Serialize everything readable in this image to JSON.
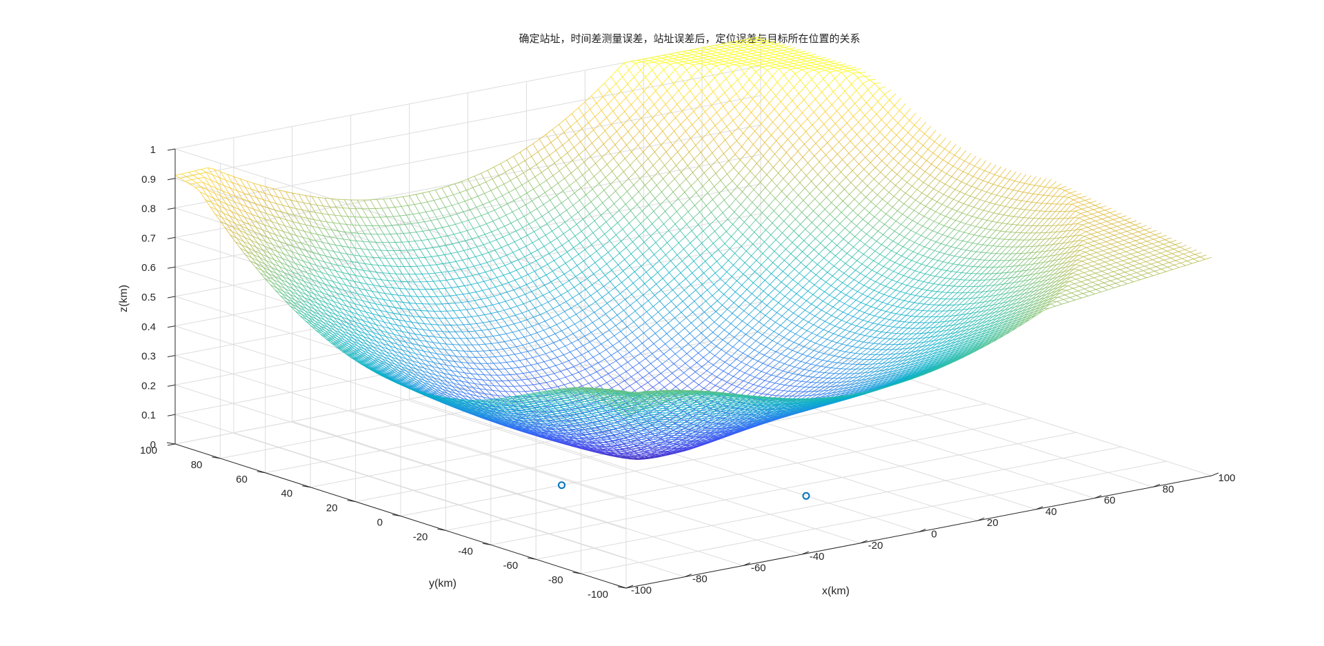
{
  "chart_data": {
    "type": "surface",
    "title": "确定站址，时间差测量误差，站址误差后，定位误差与目标所在位置的关系",
    "xlabel": "x(km)",
    "ylabel": "y(km)",
    "zlabel": "z(km)",
    "xlim": [
      -100,
      100
    ],
    "ylim": [
      -100,
      100
    ],
    "zlim": [
      0,
      1
    ],
    "x_ticks": [
      "-100",
      "-80",
      "-60",
      "-40",
      "-20",
      "0",
      "20",
      "40",
      "60",
      "80",
      "100"
    ],
    "y_ticks": [
      "-100",
      "-80",
      "-60",
      "-40",
      "-20",
      "0",
      "20",
      "40",
      "60",
      "80",
      "100"
    ],
    "z_ticks": [
      "0",
      "0.1",
      "0.2",
      "0.3",
      "0.4",
      "0.5",
      "0.6",
      "0.7",
      "0.8",
      "0.9",
      "1"
    ],
    "grid": true,
    "colormap": "parula",
    "colormap_colors": [
      "#3e26a8",
      "#4746eb",
      "#2f6ef6",
      "#1998dd",
      "#08b0c8",
      "#35c0a1",
      "#8ac16b",
      "#dcb93c",
      "#fcce2e",
      "#f9fb0e"
    ],
    "corner_values": [
      {
        "x": -100,
        "y": -100,
        "z": 0.5
      },
      {
        "x": 100,
        "y": -100,
        "z": 0.74
      },
      {
        "x": 100,
        "y": 100,
        "z": 1.0
      },
      {
        "x": -100,
        "y": 100,
        "z": 0.91
      }
    ],
    "minimum_region": {
      "x": -15,
      "y": 5,
      "z": 0.02
    },
    "stations": [
      {
        "x": 0,
        "y": -50,
        "z": 0
      },
      {
        "x": -45,
        "y": 0,
        "z": 0
      }
    ],
    "marker_color": "#0072bd"
  }
}
